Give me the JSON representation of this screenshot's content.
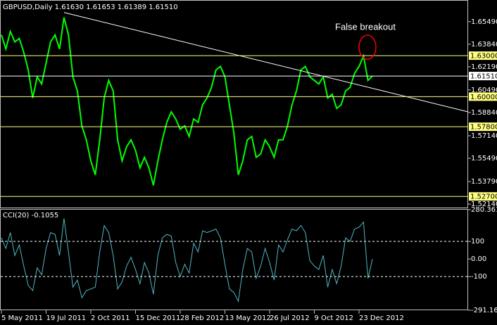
{
  "chart_data": [
    {
      "type": "line",
      "title": "GBPUSD,Daily  1.61630 1.61653 1.61389 1.61510",
      "categories": [
        "5 May 2011",
        null,
        null,
        null,
        null,
        null,
        null,
        null,
        null,
        null,
        "19 Jul 2011",
        null,
        null,
        null,
        null,
        null,
        null,
        null,
        null,
        null,
        "2 Oct 2011",
        null,
        null,
        null,
        null,
        null,
        null,
        null,
        null,
        null,
        "15 Dec 2011",
        null,
        null,
        null,
        null,
        null,
        null,
        null,
        null,
        null,
        "28 Feb 2012",
        null,
        null,
        null,
        null,
        null,
        null,
        null,
        null,
        null,
        "13 May 2012",
        null,
        null,
        null,
        null,
        null,
        null,
        null,
        null,
        null,
        "26 Jul 2012",
        null,
        null,
        null,
        null,
        null,
        null,
        null,
        null,
        null,
        "9 Oct 2012",
        null,
        null,
        null,
        null,
        null,
        null,
        null,
        null,
        null,
        "23 Dec 2012",
        null,
        null,
        null
      ],
      "series": [
        {
          "color": "#00ff00",
          "values": [
            1.6452,
            1.6349,
            1.6477,
            1.6401,
            1.6426,
            1.6324,
            1.6196,
            1.5991,
            1.6145,
            1.6093,
            1.6247,
            1.6401,
            1.6452,
            1.6349,
            1.658,
            1.6452,
            1.6145,
            1.6042,
            1.5786,
            1.5684,
            1.553,
            1.5428,
            1.5684,
            1.5991,
            1.6119,
            1.6042,
            1.5684,
            1.553,
            1.5633,
            1.5684,
            1.5607,
            1.5479,
            1.5556,
            1.5479,
            1.5351,
            1.553,
            1.5684,
            1.5812,
            1.5889,
            1.5837,
            1.5761,
            1.5786,
            1.5709,
            1.5837,
            1.5812,
            1.594,
            1.5991,
            1.6068,
            1.6196,
            1.6221,
            1.6145,
            1.594,
            1.5735,
            1.5428,
            1.553,
            1.5684,
            1.5709,
            1.5556,
            1.5581,
            1.5684,
            1.5633,
            1.5556,
            1.5684,
            1.5684,
            1.5786,
            1.594,
            1.6042,
            1.6196,
            1.6221,
            1.6145,
            1.6119,
            1.6093,
            1.6145,
            1.5991,
            1.6017,
            1.5914,
            1.594,
            1.6042,
            1.6068,
            1.617,
            1.6221,
            1.6298,
            1.6119,
            1.6151
          ]
        }
      ],
      "ylim": [
        1.5194,
        1.6697
      ],
      "yticks": [
        {
          "value": 1.6549,
          "label": "1.65490"
        },
        {
          "value": 1.6384,
          "label": "1.63840"
        },
        {
          "value": 1.6219,
          "label": "1.62190"
        },
        {
          "value": 1.6049,
          "label": "1.60490"
        },
        {
          "value": 1.5884,
          "label": "1.58840"
        },
        {
          "value": 1.5714,
          "label": "1.57140"
        },
        {
          "value": 1.5549,
          "label": "1.55490"
        },
        {
          "value": 1.5379,
          "label": "1.53790"
        },
        {
          "value": 1.5214,
          "label": "1.52140"
        }
      ],
      "levels": [
        {
          "value": 1.63,
          "label": "1.63000"
        },
        {
          "value": 1.6,
          "label": "1.60000"
        },
        {
          "value": 1.578,
          "label": "1.57800"
        },
        {
          "value": 1.527,
          "label": "1.52700"
        }
      ],
      "level_color": "#ffff80",
      "current_price": {
        "value": 1.6151,
        "label": "1.61510"
      },
      "trendline": {
        "values": [
          1.6616,
          1.5889
        ],
        "color": "#ffffff"
      },
      "annotation": "False breakout"
    },
    {
      "type": "line",
      "title": "CCI(20) -0.1055",
      "series": [
        {
          "color": "#4fb8c4",
          "values": [
            120,
            60,
            150,
            20,
            80,
            -40,
            -150,
            -180,
            -50,
            -90,
            60,
            150,
            140,
            20,
            230,
            40,
            -160,
            -120,
            -220,
            -180,
            -170,
            -160,
            40,
            190,
            150,
            20,
            -170,
            -130,
            -40,
            10,
            -60,
            -140,
            -20,
            -80,
            -200,
            20,
            120,
            140,
            130,
            -20,
            -100,
            -30,
            -80,
            90,
            40,
            160,
            150,
            160,
            170,
            120,
            -30,
            -170,
            -190,
            -240,
            -60,
            60,
            40,
            -110,
            -40,
            60,
            -20,
            -120,
            80,
            40,
            110,
            170,
            160,
            190,
            150,
            -10,
            -40,
            -60,
            20,
            -160,
            -60,
            -140,
            -40,
            120,
            100,
            170,
            180,
            210,
            -110,
            -0.1055
          ]
        }
      ],
      "ylim": [
        -291.166,
        280.3617
      ],
      "yticks": [
        280.3617,
        100,
        {
          "value": 0,
          "label": "0.00"
        },
        -100,
        -291.166
      ],
      "levels": [
        100,
        -100
      ]
    }
  ]
}
